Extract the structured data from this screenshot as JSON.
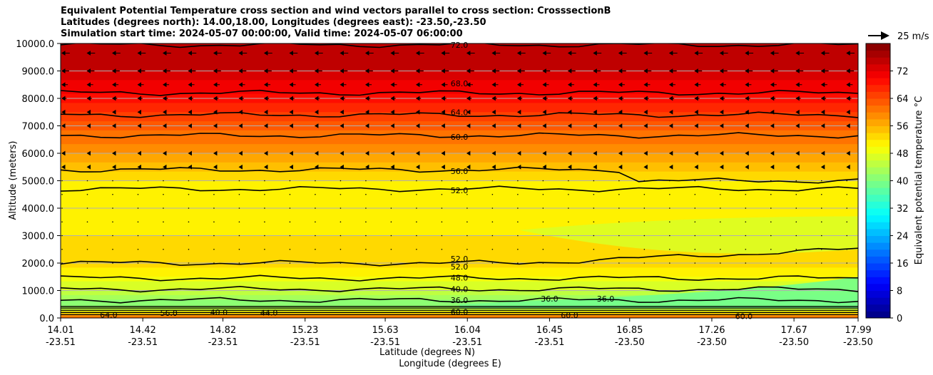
{
  "title_lines": [
    "Equivalent Potential Temperature cross section and wind vectors parallel to cross section: CrosssectionB",
    "Latitudes (degrees north): 14.00,18.00, Longitudes (degrees east): -23.50,-23.50",
    "Simulation start time: 2024-05-07 00:00:00, Valid time: 2024-05-07 06:00:00"
  ],
  "chart_data": {
    "type": "heatmap",
    "subtype": "filled contour cross section with contour lines and wind vectors",
    "x_ticks": [
      {
        "lat": "14.01",
        "lon": "-23.51"
      },
      {
        "lat": "14.42",
        "lon": "-23.51"
      },
      {
        "lat": "14.82",
        "lon": "-23.51"
      },
      {
        "lat": "15.23",
        "lon": "-23.51"
      },
      {
        "lat": "15.63",
        "lon": "-23.51"
      },
      {
        "lat": "16.04",
        "lon": "-23.51"
      },
      {
        "lat": "16.45",
        "lon": "-23.51"
      },
      {
        "lat": "16.85",
        "lon": "-23.50"
      },
      {
        "lat": "17.26",
        "lon": "-23.50"
      },
      {
        "lat": "17.67",
        "lon": "-23.50"
      },
      {
        "lat": "17.99",
        "lon": "-23.50"
      }
    ],
    "xlabel_lat": "Latitude (degrees N)",
    "xlabel_lon": "Longitude (degrees E)",
    "ylabel": "Altitude (meters)",
    "y_ticks": [
      "0.0",
      "1000.0",
      "2000.0",
      "3000.0",
      "4000.0",
      "5000.0",
      "6000.0",
      "7000.0",
      "8000.0",
      "9000.0",
      "10000.0"
    ],
    "ylim": [
      0,
      10000
    ],
    "grid": "horizontal",
    "colorbar": {
      "label": "Equivalent potential temperature $^\\circ$C",
      "label_text": "Equivalent potential temperature °C",
      "ticks": [
        "0",
        "8",
        "16",
        "24",
        "32",
        "40",
        "48",
        "56",
        "64",
        "72"
      ],
      "range": [
        0,
        80
      ],
      "colormap": "jet"
    },
    "quiver_key": {
      "label": "25 m/s"
    },
    "contours": [
      {
        "level": "72.0",
        "altitude": 9950
      },
      {
        "level": "68.0",
        "altitude": 8200
      },
      {
        "level": "64.0",
        "altitude": 7400
      },
      {
        "level": "60.0",
        "altitude": 6650
      },
      {
        "level": "56.0",
        "altitude": 5400
      },
      {
        "level": "52.0",
        "altitude": 4700
      },
      {
        "level": "52.0",
        "altitude": 2000
      },
      {
        "level": "48.0",
        "altitude": 1450
      },
      {
        "level": "40.0",
        "altitude": 1050
      },
      {
        "level": "36.0",
        "altitude": 650
      }
    ],
    "contour_labels": [
      {
        "text": "72.0",
        "lat": 16.0,
        "alt": 9950
      },
      {
        "text": "68.0",
        "lat": 16.0,
        "alt": 8550
      },
      {
        "text": "64.0",
        "lat": 16.0,
        "alt": 7500
      },
      {
        "text": "60.0",
        "lat": 16.0,
        "alt": 6600
      },
      {
        "text": "56.0",
        "lat": 16.0,
        "alt": 5350
      },
      {
        "text": "52.0",
        "lat": 16.0,
        "alt": 4650
      },
      {
        "text": "52.0",
        "lat": 16.0,
        "alt": 2150
      },
      {
        "text": "52.0",
        "lat": 16.0,
        "alt": 1870
      },
      {
        "text": "48.0",
        "lat": 16.0,
        "alt": 1470
      },
      {
        "text": "40.0",
        "lat": 16.0,
        "alt": 1050
      },
      {
        "text": "36.0",
        "lat": 16.0,
        "alt": 650
      },
      {
        "text": "60.0",
        "lat": 16.0,
        "alt": 220
      },
      {
        "text": "36.0",
        "lat": 16.45,
        "alt": 700
      },
      {
        "text": "36.0",
        "lat": 16.73,
        "alt": 700
      },
      {
        "text": "60.0",
        "lat": 16.55,
        "alt": 100
      },
      {
        "text": "60.0",
        "lat": 17.42,
        "alt": 60
      },
      {
        "text": "64.0",
        "lat": 14.25,
        "alt": 120
      },
      {
        "text": "56.0",
        "lat": 14.55,
        "alt": 180
      },
      {
        "text": "40.0",
        "lat": 14.8,
        "alt": 210
      },
      {
        "text": "44.0",
        "lat": 15.05,
        "alt": 200
      }
    ],
    "field_bands": [
      {
        "alt": 10000,
        "value": 76
      },
      {
        "alt": 9000,
        "value": 74
      },
      {
        "alt": 8000,
        "value": 69
      },
      {
        "alt": 7000,
        "value": 63
      },
      {
        "alt": 6000,
        "value": 58
      },
      {
        "alt": 5000,
        "value": 52
      },
      {
        "alt": 4000,
        "value": 50
      },
      {
        "alt": 3000,
        "value": 52
      },
      {
        "alt": 2000,
        "value": 53
      },
      {
        "alt": 1000,
        "value": 46
      },
      {
        "alt": 500,
        "value": 40
      },
      {
        "alt": 300,
        "value": 46
      },
      {
        "alt": 0,
        "value": 63
      }
    ],
    "wind_vector_rows": [
      {
        "alt": 9650,
        "speed": 12
      },
      {
        "alt": 9000,
        "speed": 11
      },
      {
        "alt": 8500,
        "speed": 9
      },
      {
        "alt": 8000,
        "speed": 7
      },
      {
        "alt": 7500,
        "speed": 5
      },
      {
        "alt": 7000,
        "speed": 4
      },
      {
        "alt": 6000,
        "speed": 3
      },
      {
        "alt": 5500,
        "speed": 3
      },
      {
        "alt": 5000,
        "speed": 2
      },
      {
        "alt": 4500,
        "speed": 1.5
      },
      {
        "alt": 4000,
        "speed": 1
      },
      {
        "alt": 3500,
        "speed": 1
      },
      {
        "alt": 3000,
        "speed": 1
      },
      {
        "alt": 2500,
        "speed": 1.5
      },
      {
        "alt": 2000,
        "speed": 2
      }
    ]
  }
}
